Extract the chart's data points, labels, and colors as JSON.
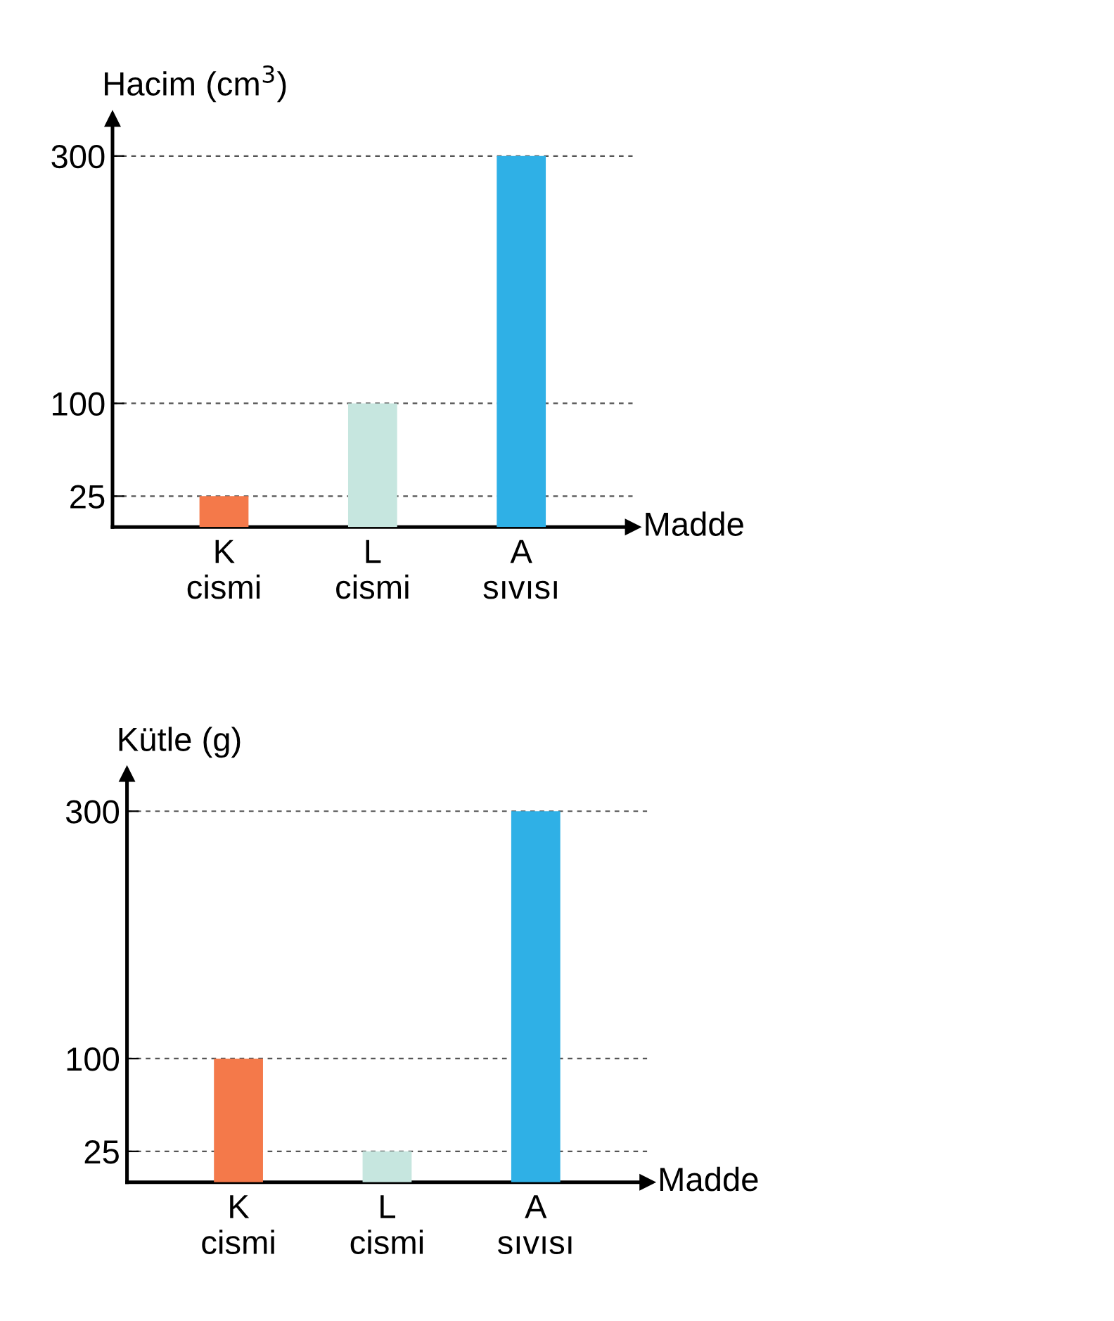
{
  "chart_data": [
    {
      "type": "bar",
      "ylabel": "Hacim (cm$^{3}$)",
      "xlabel": "Madde",
      "categories": [
        "K\ncismi",
        "L\ncismi",
        "A\nsıvısı"
      ],
      "values": [
        25,
        100,
        300
      ],
      "colors": [
        "#f4794a",
        "#c6e6df",
        "#2fb0e6"
      ],
      "ylim": [
        0,
        330
      ],
      "yticks": [
        25,
        100,
        300
      ],
      "grid": "y"
    },
    {
      "type": "bar",
      "ylabel": "Kütle (g)",
      "xlabel": "Madde",
      "categories": [
        "K\ncismi",
        "L\ncismi",
        "A\nsıvısı"
      ],
      "values": [
        100,
        25,
        300
      ],
      "colors": [
        "#f4794a",
        "#c6e6df",
        "#2fb0e6"
      ],
      "ylim": [
        0,
        330
      ],
      "yticks": [
        25,
        100,
        300
      ],
      "grid": "y"
    }
  ]
}
